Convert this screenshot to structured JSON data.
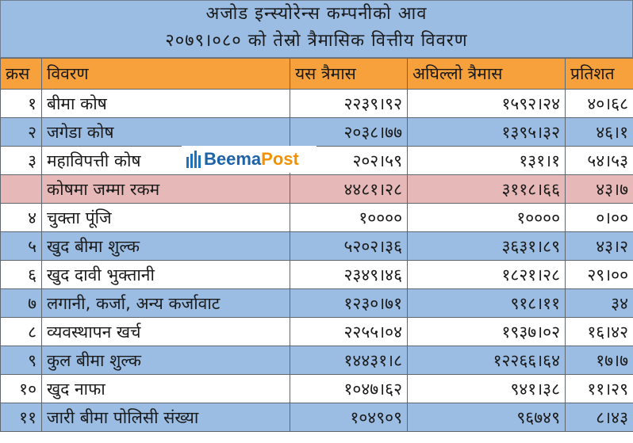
{
  "title": {
    "line1": "अजोड इन्स्योरेन्स कम्पनीको आव",
    "line2": "२०७९।०८० को तेस्रो त्रैमासिक वित्तीय विवरण"
  },
  "headers": {
    "sn": "क्रस",
    "desc": "विवरण",
    "current": "यस त्रैमास",
    "previous": "अघिल्लो त्रैमास",
    "percent": "प्रतिशत"
  },
  "rows": [
    {
      "sn": "१",
      "desc": "बीमा कोष",
      "current": "२२३९।९२",
      "previous": "१५९२।२४",
      "percent": "४०।६८",
      "style": "white"
    },
    {
      "sn": "२",
      "desc": "जगेडा कोष",
      "current": "२०३८।७७",
      "previous": "१३९५।३२",
      "percent": "४६।१",
      "style": "blue"
    },
    {
      "sn": "३",
      "desc": "महाविपत्ती कोष",
      "current": "२०२।५९",
      "previous": "१३१।१",
      "percent": "५४।५३",
      "style": "white"
    },
    {
      "sn": "",
      "desc": "कोषमा जम्मा रकम",
      "current": "४४८१।२८",
      "previous": "३११८।६६",
      "percent": "४३।७",
      "style": "pink"
    },
    {
      "sn": "४",
      "desc": "चुक्ता पूंजि",
      "current": "१००००",
      "previous": "१००००",
      "percent": "०।००",
      "style": "white"
    },
    {
      "sn": "५",
      "desc": "खुद बीमा शुल्क",
      "current": "५२०२।३६",
      "previous": "३६३१।८९",
      "percent": "४३।२",
      "style": "blue"
    },
    {
      "sn": "६",
      "desc": "खुद दावी भुक्तानी",
      "current": "२३४९।४६",
      "previous": "१८२१।२८",
      "percent": "२९।००",
      "style": "white"
    },
    {
      "sn": "७",
      "desc": "लगानी, कर्जा, अन्य कर्जावाट",
      "current": "१२३०।७१",
      "previous": "९१८।११",
      "percent": "३४",
      "style": "blue"
    },
    {
      "sn": "८",
      "desc": "व्यवस्थापन खर्च",
      "current": "२२५५।०४",
      "previous": "१९३७।०२",
      "percent": "१६।४२",
      "style": "white"
    },
    {
      "sn": "९",
      "desc": "कुल बीमा शुल्क",
      "current": "१४४३१।८",
      "previous": "१२२६६।६४",
      "percent": "१७।७",
      "style": "blue"
    },
    {
      "sn": "१०",
      "desc": "खुद नाफा",
      "current": "१०४७।६२",
      "previous": "९४१।३८",
      "percent": "११।२९",
      "style": "white"
    },
    {
      "sn": "११",
      "desc": "जारी बीमा पोलिसी संख्या",
      "current": "१०४९०९",
      "previous": "९६७४९",
      "percent": "८।४३",
      "style": "blue"
    }
  ],
  "logo": {
    "part1": "Beema",
    "part2": "Post",
    "color1": "#1e63a8",
    "color2": "#f39200"
  },
  "colors": {
    "header": "#f7a13d",
    "blue": "#9bbde3",
    "pink": "#e6b9b8"
  }
}
